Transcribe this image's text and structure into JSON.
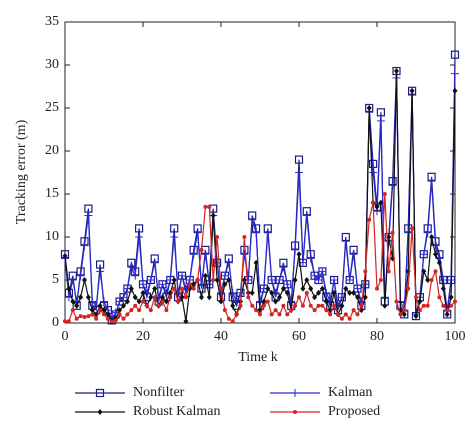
{
  "chart_data": {
    "type": "line",
    "xlabel": "Time k",
    "ylabel": "Tracking error (m)",
    "x": [
      0,
      1,
      2,
      3,
      4,
      5,
      6,
      7,
      8,
      9,
      10,
      11,
      12,
      13,
      14,
      15,
      16,
      17,
      18,
      19,
      20,
      21,
      22,
      23,
      24,
      25,
      26,
      27,
      28,
      29,
      30,
      31,
      32,
      33,
      34,
      35,
      36,
      37,
      38,
      39,
      40,
      41,
      42,
      43,
      44,
      45,
      46,
      47,
      48,
      49,
      50,
      51,
      52,
      53,
      54,
      55,
      56,
      57,
      58,
      59,
      60,
      61,
      62,
      63,
      64,
      65,
      66,
      67,
      68,
      69,
      70,
      71,
      72,
      73,
      74,
      75,
      76,
      77,
      78,
      79,
      80,
      81,
      82,
      83,
      84,
      85,
      86,
      87,
      88,
      89,
      90,
      91,
      92,
      93,
      94,
      95,
      96,
      97,
      98,
      99,
      100
    ],
    "series": [
      {
        "name": "Nonfilter",
        "color": "#1c1c8a",
        "marker": "square",
        "values": [
          8,
          3.5,
          5.5,
          2,
          6,
          9.5,
          13.3,
          2,
          1.5,
          6.8,
          2,
          1.5,
          0.3,
          1,
          2.5,
          3,
          4,
          7,
          6,
          11,
          4.5,
          3,
          5,
          7.5,
          2.5,
          4.5,
          3,
          5,
          11,
          3,
          5.5,
          3.5,
          5,
          8.5,
          11,
          4,
          8.5,
          4.5,
          13.3,
          7,
          3,
          5.5,
          7.5,
          3,
          2,
          3.5,
          8.5,
          5,
          12.5,
          11,
          2,
          4,
          11,
          5,
          3,
          5,
          7,
          4.5,
          2,
          9,
          19,
          7,
          13,
          8,
          5.5,
          5,
          6,
          3,
          2,
          5,
          1.5,
          3,
          10,
          5,
          8.5,
          4,
          2,
          4.5,
          25,
          18.5,
          13.5,
          24.5,
          2.5,
          10,
          16.5,
          29.3,
          2,
          1,
          11,
          27,
          0.8,
          3,
          8,
          11,
          17,
          9.5,
          8,
          5,
          1,
          5,
          31.2
        ]
      },
      {
        "name": "Kalman",
        "color": "#2a2ad0",
        "marker": "plus",
        "values": [
          7.5,
          3,
          5,
          2.5,
          5.5,
          9,
          12.5,
          2.5,
          2,
          6,
          2.5,
          1.5,
          0.5,
          1.2,
          2.5,
          3,
          4,
          6.5,
          5.5,
          10,
          4.5,
          3.5,
          5,
          7,
          3,
          4.5,
          3.5,
          5,
          10,
          3.5,
          5.5,
          4,
          5,
          8,
          10.5,
          4.5,
          8,
          4.5,
          12.5,
          7,
          3.5,
          5.5,
          7,
          3.5,
          2.5,
          3.5,
          8,
          5,
          12,
          10.5,
          2.5,
          4,
          10.5,
          5,
          3.5,
          5,
          6.5,
          4.5,
          2.5,
          8.5,
          17.5,
          7,
          12.5,
          7.5,
          5.5,
          5,
          6,
          3.5,
          2.5,
          5,
          2,
          3,
          9.5,
          5,
          8,
          4,
          2.5,
          4.5,
          24.5,
          17.5,
          13,
          23.5,
          3,
          9.5,
          16,
          28.5,
          2.5,
          1.5,
          10.5,
          26.5,
          1,
          3,
          8,
          10.5,
          16.5,
          9,
          7.5,
          5,
          1.5,
          5,
          29
        ]
      },
      {
        "name": "Robust Kalman",
        "color": "#111111",
        "marker": "diamond",
        "values": [
          7.8,
          4,
          2.5,
          2,
          3,
          5,
          3,
          1.5,
          1,
          2,
          1.5,
          1,
          0.3,
          0.5,
          1.5,
          2,
          2.5,
          4,
          3,
          2.5,
          3.5,
          2,
          3,
          4,
          2,
          3,
          2.5,
          3.5,
          5,
          2.5,
          3,
          0.2,
          4,
          4.5,
          5,
          3,
          5.5,
          3,
          12.5,
          5,
          2.5,
          4.5,
          5,
          2,
          1,
          2.5,
          5,
          3.5,
          3.5,
          7,
          1.5,
          2.5,
          4,
          3.5,
          2.5,
          3,
          4,
          3.5,
          1.5,
          5,
          8,
          4,
          5,
          4,
          3,
          3.5,
          4,
          2.5,
          1.5,
          3.5,
          1,
          2,
          4,
          3.5,
          3.5,
          3,
          1.5,
          3,
          25,
          14,
          13.5,
          14,
          2,
          10,
          7.5,
          29.3,
          1.5,
          1,
          6,
          27,
          0.8,
          2.5,
          6,
          5,
          10,
          8,
          7,
          4,
          1,
          3,
          27
        ]
      },
      {
        "name": "Proposed",
        "color": "#d42424",
        "marker": "dot",
        "values": [
          0.2,
          0.2,
          1.5,
          0.5,
          0.8,
          0.7,
          0.8,
          1,
          0.5,
          1.5,
          1,
          0.5,
          0.2,
          0.3,
          1,
          0.5,
          1,
          1.5,
          2,
          1.5,
          2.5,
          2,
          1.5,
          3,
          2,
          2.5,
          1.5,
          3,
          4,
          2.5,
          4,
          3,
          4.5,
          4,
          5,
          8.5,
          13.5,
          13.5,
          5,
          10,
          4,
          1.5,
          0.5,
          0.2,
          1,
          2,
          10,
          3,
          2,
          1.5,
          1,
          2,
          2.5,
          1,
          1.5,
          1,
          2,
          1,
          1.5,
          2,
          3,
          2,
          3.5,
          2,
          1.5,
          2,
          2,
          1.5,
          1,
          2,
          1,
          0.5,
          1,
          0.5,
          1.5,
          1,
          2,
          6,
          12,
          14,
          4,
          5,
          15,
          6,
          10.5,
          2.5,
          1,
          1.5,
          4,
          11,
          3,
          1.5,
          2,
          2,
          5,
          6,
          3,
          2,
          1.5,
          2,
          2.5
        ]
      }
    ],
    "xlim": [
      0,
      100
    ],
    "xticks": [
      0,
      20,
      40,
      60,
      80,
      100
    ],
    "ylim": [
      0,
      35
    ],
    "yticks": [
      0,
      5,
      10,
      15,
      20,
      25,
      30,
      35
    ]
  }
}
